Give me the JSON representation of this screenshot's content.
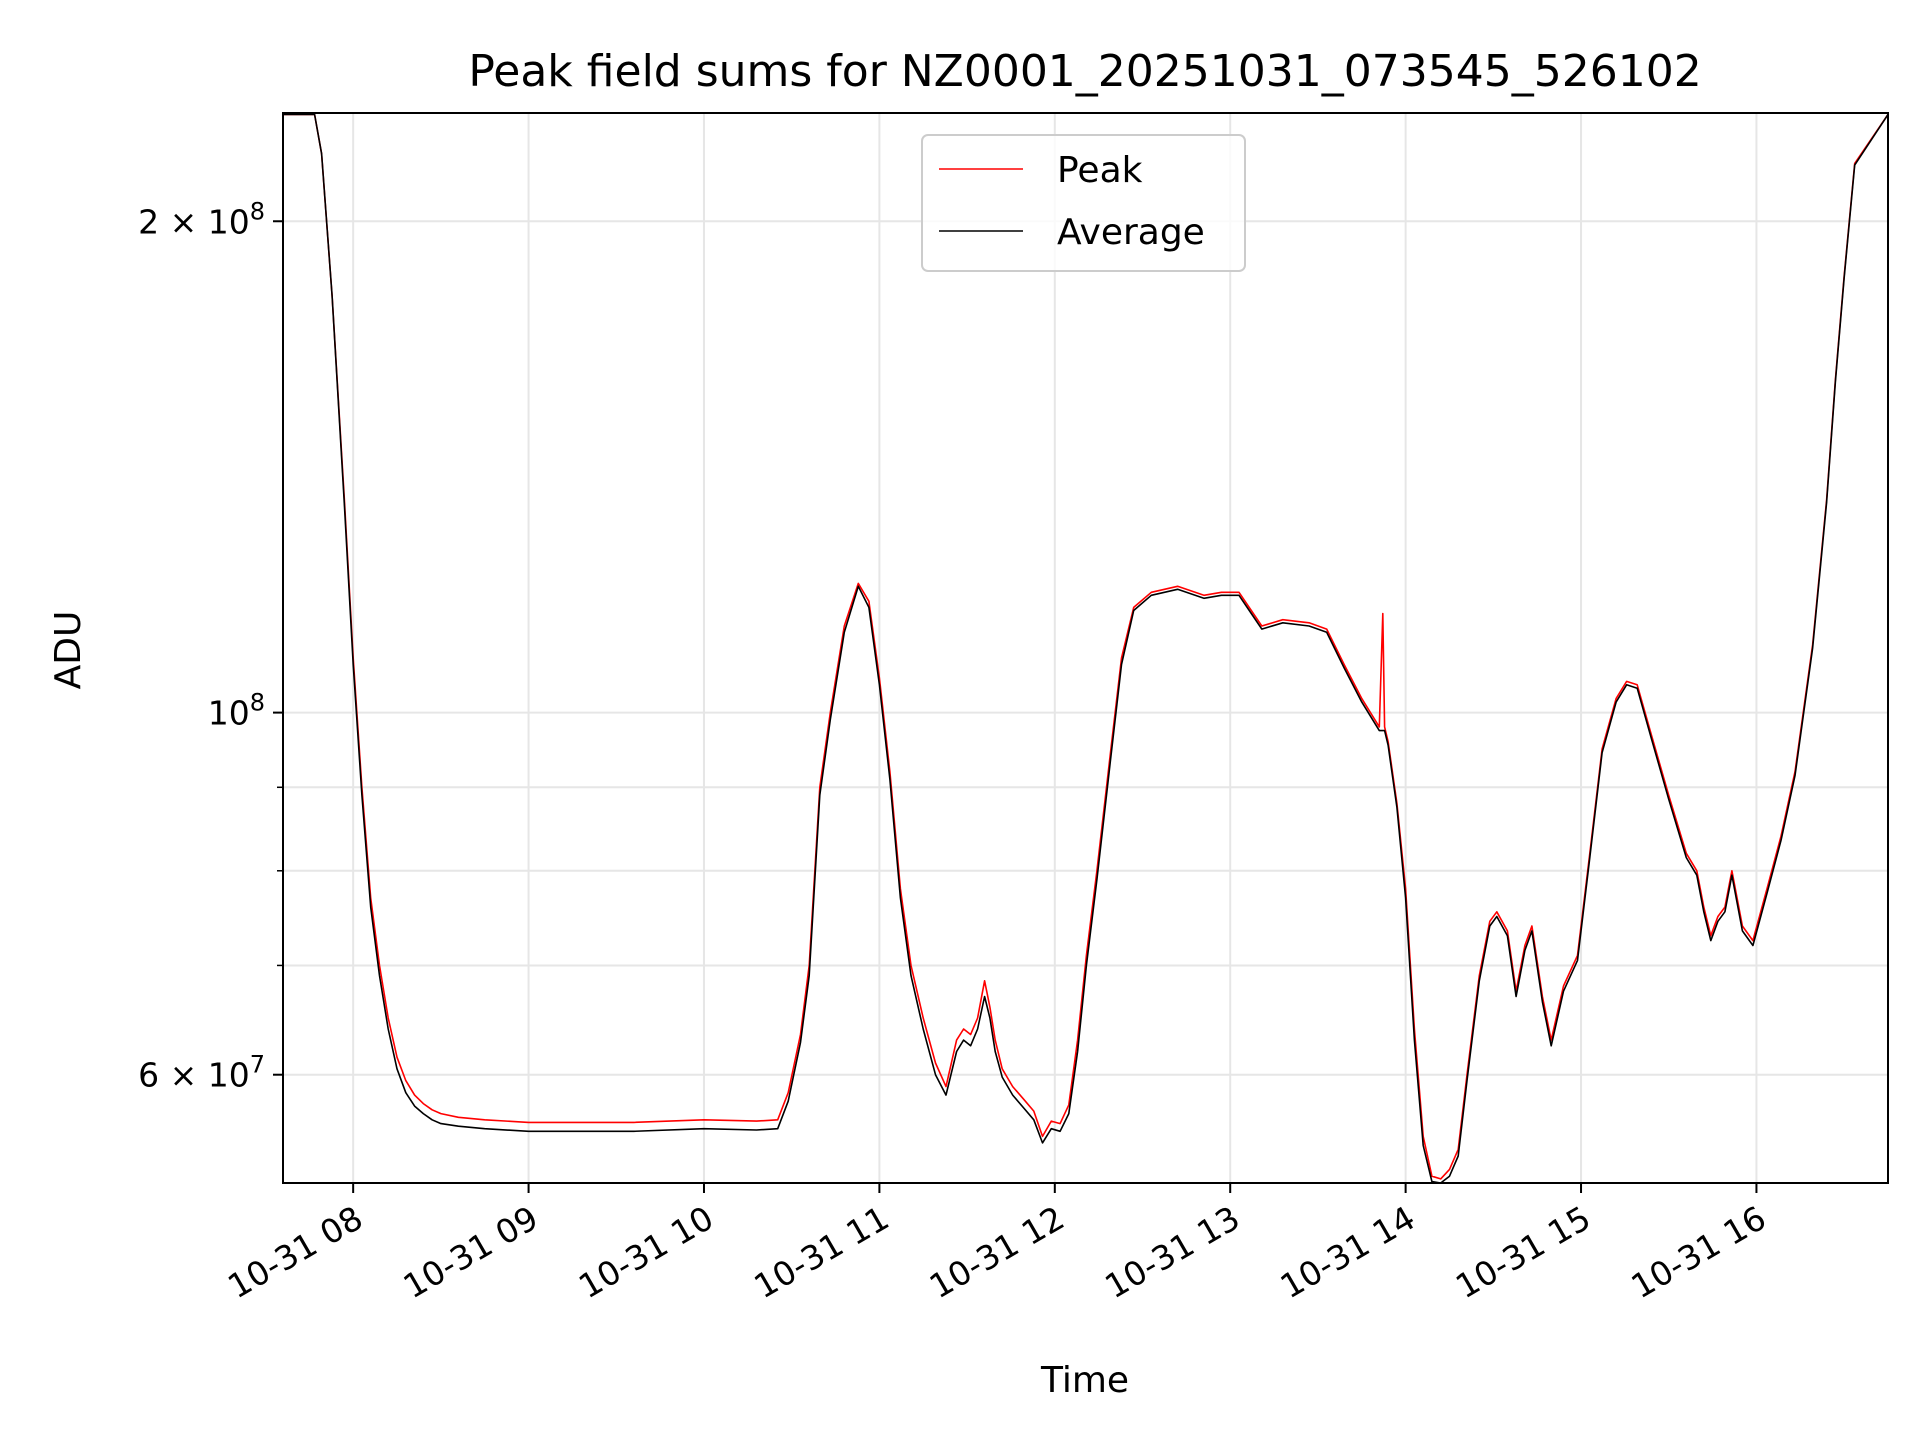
{
  "chart_data": {
    "type": "line",
    "title": "Peak field sums for NZ0001_20251031_073545_526102",
    "xlabel": "Time",
    "ylabel": "ADU",
    "yscale": "log",
    "xlim": [
      7.6,
      16.75
    ],
    "ylim": [
      51500000,
      233000000
    ],
    "grid": true,
    "legend_position": "top-center",
    "x_ticks": [
      {
        "value": 8,
        "label": "10-31 08"
      },
      {
        "value": 9,
        "label": "10-31 09"
      },
      {
        "value": 10,
        "label": "10-31 10"
      },
      {
        "value": 11,
        "label": "10-31 11"
      },
      {
        "value": 12,
        "label": "10-31 12"
      },
      {
        "value": 13,
        "label": "10-31 13"
      },
      {
        "value": 14,
        "label": "10-31 14"
      },
      {
        "value": 15,
        "label": "10-31 15"
      },
      {
        "value": 16,
        "label": "10-31 16"
      }
    ],
    "y_major_ticks": [
      {
        "value": 60000000,
        "mantissa": "6",
        "exponent": "7"
      },
      {
        "value": 100000000,
        "mantissa": "",
        "exponent": "8"
      },
      {
        "value": 200000000,
        "mantissa": "2",
        "exponent": "8"
      }
    ],
    "y_minor_ticks": [
      70000000,
      80000000,
      90000000
    ],
    "series": [
      {
        "name": "Peak",
        "color": "#ff0000",
        "x": [
          7.6,
          7.78,
          7.82,
          7.88,
          7.95,
          8.0,
          8.05,
          8.1,
          8.15,
          8.2,
          8.25,
          8.3,
          8.35,
          8.4,
          8.45,
          8.5,
          8.6,
          8.75,
          9.0,
          9.3,
          9.6,
          10.0,
          10.3,
          10.42,
          10.48,
          10.55,
          10.6,
          10.66,
          10.72,
          10.8,
          10.88,
          10.94,
          11.0,
          11.06,
          11.12,
          11.18,
          11.25,
          11.32,
          11.38,
          11.44,
          11.48,
          11.52,
          11.56,
          11.6,
          11.63,
          11.66,
          11.7,
          11.76,
          11.82,
          11.88,
          11.93,
          11.98,
          12.03,
          12.08,
          12.13,
          12.18,
          12.24,
          12.32,
          12.38,
          12.45,
          12.55,
          12.7,
          12.85,
          12.95,
          13.05,
          13.12,
          13.18,
          13.3,
          13.45,
          13.55,
          13.65,
          13.75,
          13.85,
          13.87,
          13.88,
          13.9,
          13.95,
          14.0,
          14.05,
          14.1,
          14.15,
          14.2,
          14.25,
          14.3,
          14.35,
          14.42,
          14.48,
          14.52,
          14.58,
          14.63,
          14.68,
          14.72,
          14.78,
          14.83,
          14.9,
          14.98,
          15.05,
          15.12,
          15.2,
          15.26,
          15.32,
          15.4,
          15.5,
          15.6,
          15.66,
          15.7,
          15.74,
          15.78,
          15.82,
          15.86,
          15.92,
          15.98,
          16.06,
          16.14,
          16.22,
          16.32,
          16.4,
          16.45,
          16.5,
          16.56,
          16.75
        ],
        "values": [
          232500000,
          232500000,
          220000000,
          180000000,
          135000000,
          108000000,
          90000000,
          77000000,
          70000000,
          65000000,
          61500000,
          59500000,
          58300000,
          57600000,
          57100000,
          56800000,
          56500000,
          56300000,
          56100000,
          56100000,
          56100000,
          56300000,
          56200000,
          56300000,
          58500000,
          63500000,
          70000000,
          90000000,
          100000000,
          113000000,
          120000000,
          117000000,
          105000000,
          92000000,
          78000000,
          70000000,
          65000000,
          61000000,
          59000000,
          63000000,
          64000000,
          63500000,
          65000000,
          68500000,
          66000000,
          63000000,
          60500000,
          59000000,
          58000000,
          57000000,
          55000000,
          56200000,
          56000000,
          57500000,
          63000000,
          71000000,
          80000000,
          95000000,
          108000000,
          116000000,
          118500000,
          119500000,
          118000000,
          118500000,
          118500000,
          115500000,
          113000000,
          114000000,
          113500000,
          112500000,
          107000000,
          102000000,
          98000000,
          115000000,
          98000000,
          96000000,
          88000000,
          78000000,
          64000000,
          55000000,
          52000000,
          51800000,
          52500000,
          54000000,
          60000000,
          69000000,
          74500000,
          75500000,
          73500000,
          67500000,
          72000000,
          74000000,
          67000000,
          63000000,
          68000000,
          71000000,
          82000000,
          95000000,
          102000000,
          104500000,
          104000000,
          97000000,
          89000000,
          82000000,
          80000000,
          76000000,
          73000000,
          75000000,
          76000000,
          80000000,
          74000000,
          72500000,
          78000000,
          84000000,
          92000000,
          110000000,
          135000000,
          160000000,
          185000000,
          217000000,
          232500000
        ]
      },
      {
        "name": "Average",
        "color": "#000000",
        "x": [
          7.6,
          7.78,
          7.82,
          7.88,
          7.95,
          8.0,
          8.05,
          8.1,
          8.15,
          8.2,
          8.25,
          8.3,
          8.35,
          8.4,
          8.45,
          8.5,
          8.6,
          8.75,
          9.0,
          9.3,
          9.6,
          10.0,
          10.3,
          10.42,
          10.48,
          10.55,
          10.6,
          10.66,
          10.72,
          10.8,
          10.88,
          10.94,
          11.0,
          11.06,
          11.12,
          11.18,
          11.25,
          11.32,
          11.38,
          11.44,
          11.48,
          11.52,
          11.56,
          11.6,
          11.63,
          11.66,
          11.7,
          11.76,
          11.82,
          11.88,
          11.93,
          11.98,
          12.03,
          12.08,
          12.13,
          12.18,
          12.24,
          12.32,
          12.38,
          12.45,
          12.55,
          12.7,
          12.85,
          12.95,
          13.05,
          13.12,
          13.18,
          13.3,
          13.45,
          13.55,
          13.65,
          13.75,
          13.85,
          13.87,
          13.88,
          13.9,
          13.95,
          14.0,
          14.05,
          14.1,
          14.15,
          14.2,
          14.25,
          14.3,
          14.35,
          14.42,
          14.48,
          14.52,
          14.58,
          14.63,
          14.68,
          14.72,
          14.78,
          14.83,
          14.9,
          14.98,
          15.05,
          15.12,
          15.2,
          15.26,
          15.32,
          15.4,
          15.5,
          15.6,
          15.66,
          15.7,
          15.74,
          15.78,
          15.82,
          15.86,
          15.92,
          15.98,
          16.06,
          16.14,
          16.22,
          16.32,
          16.4,
          16.45,
          16.5,
          16.56,
          16.75
        ],
        "values": [
          232500000,
          232500000,
          220000000,
          180000000,
          134000000,
          107000000,
          89000000,
          76000000,
          69000000,
          64000000,
          60500000,
          58500000,
          57400000,
          56800000,
          56300000,
          56000000,
          55800000,
          55600000,
          55400000,
          55400000,
          55400000,
          55600000,
          55500000,
          55600000,
          57800000,
          62800000,
          69000000,
          89000000,
          99000000,
          112000000,
          119500000,
          116000000,
          104000000,
          91000000,
          77000000,
          69000000,
          64000000,
          60000000,
          58300000,
          62000000,
          63000000,
          62500000,
          64000000,
          67000000,
          65000000,
          62000000,
          59800000,
          58300000,
          57300000,
          56300000,
          54500000,
          55600000,
          55400000,
          56800000,
          62000000,
          70000000,
          79000000,
          94000000,
          107000000,
          115500000,
          118000000,
          119000000,
          117500000,
          118000000,
          118000000,
          115000000,
          112500000,
          113500000,
          113000000,
          112000000,
          106500000,
          101500000,
          97500000,
          97500000,
          97500000,
          95500000,
          87500000,
          77000000,
          63000000,
          54300000,
          51600000,
          51500000,
          52000000,
          53500000,
          59500000,
          68500000,
          74000000,
          75000000,
          73000000,
          67000000,
          71500000,
          73500000,
          66500000,
          62500000,
          67500000,
          70500000,
          81500000,
          94500000,
          101500000,
          104000000,
          103500000,
          96500000,
          88500000,
          81500000,
          79500000,
          75500000,
          72500000,
          74500000,
          75500000,
          79500000,
          73500000,
          72000000,
          77500000,
          83500000,
          91500000,
          109500000,
          134500000,
          159500000,
          184500000,
          216500000,
          232500000
        ]
      }
    ]
  }
}
